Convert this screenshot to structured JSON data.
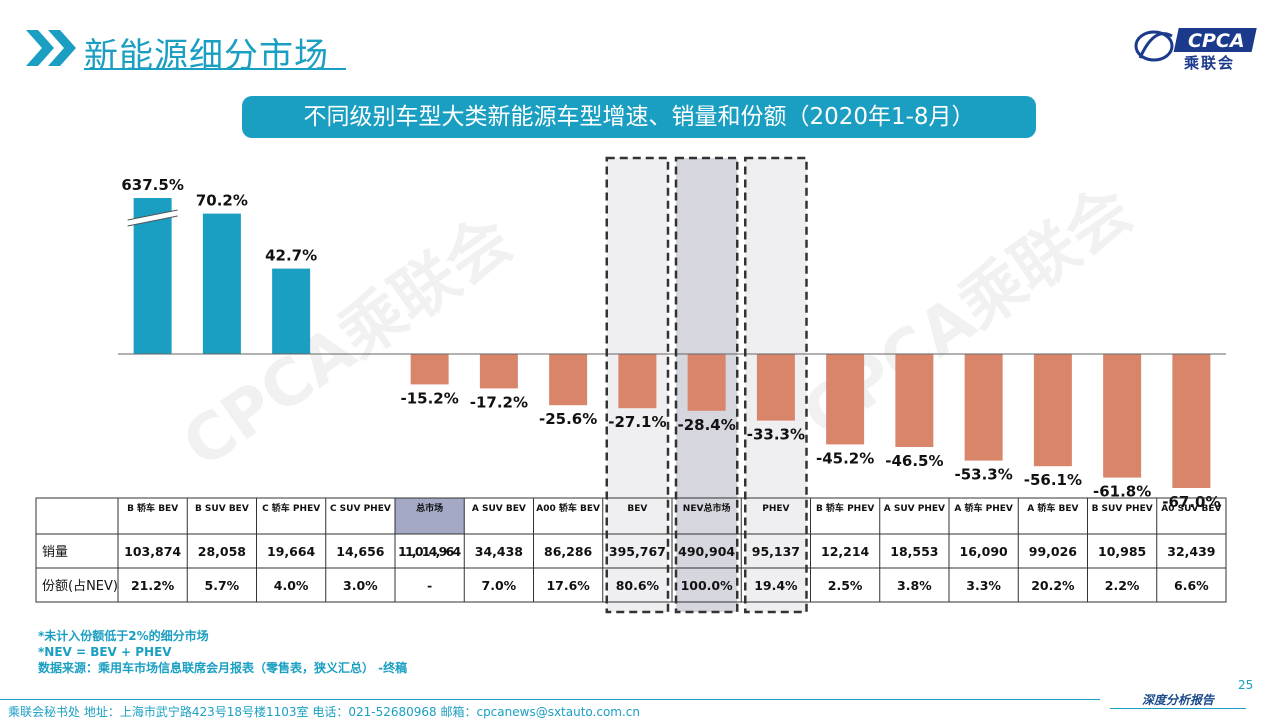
{
  "header": {
    "title": "新能源细分市场",
    "subtitle": "不同级别车型大类新能源车型增速、销量和份额（2020年1-8月）",
    "logo_text": "乘联会",
    "logo_mark": "CPCA"
  },
  "watermark": "CPCA乘联会",
  "chart_data": {
    "type": "bar",
    "categories": [
      "B 轿车 BEV",
      "B SUV BEV",
      "C 轿车 PHEV",
      "C SUV PHEV",
      "总市场",
      "A SUV BEV",
      "A00 轿车 BEV",
      "BEV",
      "NEV总市场",
      "PHEV",
      "B 轿车 PHEV",
      "A SUV PHEV",
      "A 轿车 PHEV",
      "A 轿车 BEV",
      "B SUV PHEV",
      "A0 SUV BEV"
    ],
    "values": [
      637.5,
      70.2,
      42.7,
      null,
      -15.2,
      -17.2,
      -25.6,
      -27.1,
      -28.4,
      -33.3,
      -45.2,
      -46.5,
      -53.3,
      -56.1,
      -61.8,
      -67.0
    ],
    "value_labels": [
      "637.5%",
      "70.2%",
      "42.7%",
      "",
      "-15.2%",
      "-17.2%",
      "-25.6%",
      "-27.1%",
      "-28.4%",
      "-33.3%",
      "-45.2%",
      "-46.5%",
      "-53.3%",
      "-56.1%",
      "-61.8%",
      "-67.0%"
    ],
    "broken_axis_index": 0,
    "positive_color": "#1a9fc2",
    "negative_color": "#d9856a",
    "highlight_indices": [
      7,
      8,
      9
    ],
    "row_labels": [
      "销量",
      "份额(占NEV)"
    ],
    "sales": [
      "103,874",
      "28,058",
      "19,664",
      "14,656",
      "11,014,964",
      "34,438",
      "86,286",
      "395,767",
      "490,904",
      "95,137",
      "12,214",
      "18,553",
      "16,090",
      "99,026",
      "10,985",
      "32,439"
    ],
    "shares": [
      "21.2%",
      "5.7%",
      "4.0%",
      "3.0%",
      "-",
      "7.0%",
      "17.6%",
      "80.6%",
      "100.0%",
      "19.4%",
      "2.5%",
      "3.8%",
      "3.3%",
      "20.2%",
      "2.2%",
      "6.6%"
    ]
  },
  "footnotes": [
    "*未计入份额低于2%的细分市场",
    "*NEV = BEV + PHEV",
    "数据来源：乘用车市场信息联席会月报表（零售表，狭义汇总） -终稿"
  ],
  "footer": {
    "contact": "乘联会秘书处   地址：上海市武宁路423号18号楼1103室  电话：021-52680968   邮箱：cpcanews@sxtauto.com.cn",
    "report_label": "深度分析报告",
    "page_number": "25"
  }
}
